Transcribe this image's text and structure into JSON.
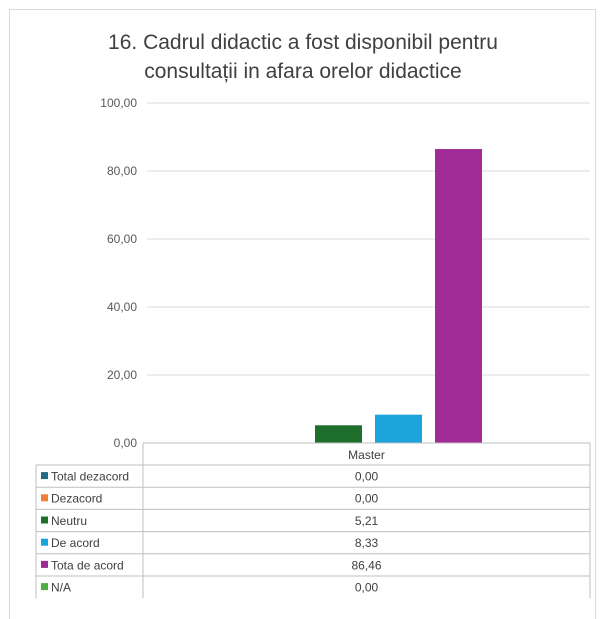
{
  "chart_data": {
    "type": "bar",
    "title_lines": [
      "16. Cadrul didactic a fost disponibil pentru",
      "consultații in afara orelor didactice"
    ],
    "categories": [
      "Master"
    ],
    "series": [
      {
        "name": "Total dezacord",
        "values": [
          0.0
        ],
        "label": "0,00",
        "color": "#1f6b86"
      },
      {
        "name": "Dezacord",
        "values": [
          0.0
        ],
        "label": "0,00",
        "color": "#f07f3a"
      },
      {
        "name": "Neutru",
        "values": [
          5.21
        ],
        "label": "5,21",
        "color": "#1e6f2c"
      },
      {
        "name": "De acord",
        "values": [
          8.33
        ],
        "label": "8,33",
        "color": "#1ba3dc"
      },
      {
        "name": "Tota de acord",
        "values": [
          86.46
        ],
        "label": "86,46",
        "color": "#a02b97"
      },
      {
        "name": "N/A",
        "values": [
          0.0
        ],
        "label": "0,00",
        "color": "#4caf3f"
      }
    ],
    "ylim": [
      0,
      100
    ],
    "yticks": [
      0,
      20,
      40,
      60,
      80,
      100
    ],
    "ytick_labels": [
      "0,00",
      "20,00",
      "40,00",
      "60,00",
      "80,00",
      "100,00"
    ],
    "grid": true,
    "legend": "data-table"
  }
}
